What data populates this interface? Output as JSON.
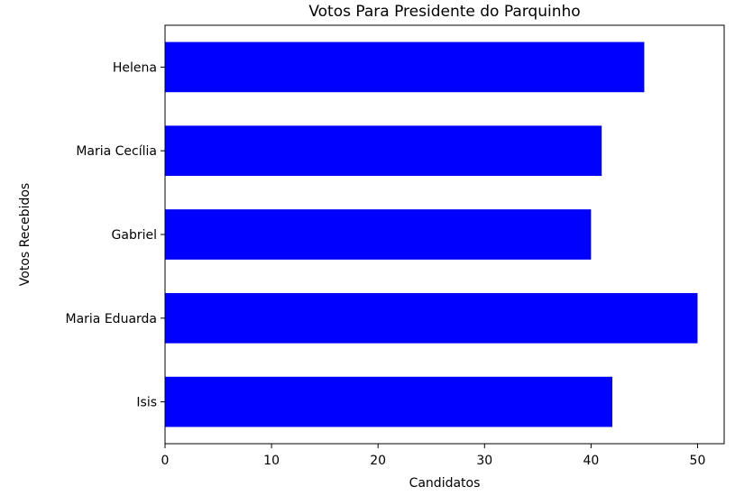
{
  "chart_data": {
    "type": "bar",
    "orientation": "horizontal",
    "title": "Votos Para Presidente do Parquinho",
    "xlabel": "Candidatos",
    "ylabel": "Votos Recebidos",
    "categories": [
      "Isis",
      "Maria Eduarda",
      "Gabriel",
      "Maria Cecília",
      "Helena"
    ],
    "values": [
      42,
      50,
      40,
      41,
      45
    ],
    "xlim": [
      0,
      52.5
    ],
    "xticks": [
      0,
      10,
      20,
      30,
      40,
      50
    ],
    "grid": false,
    "bar_color": "#0000ff"
  }
}
